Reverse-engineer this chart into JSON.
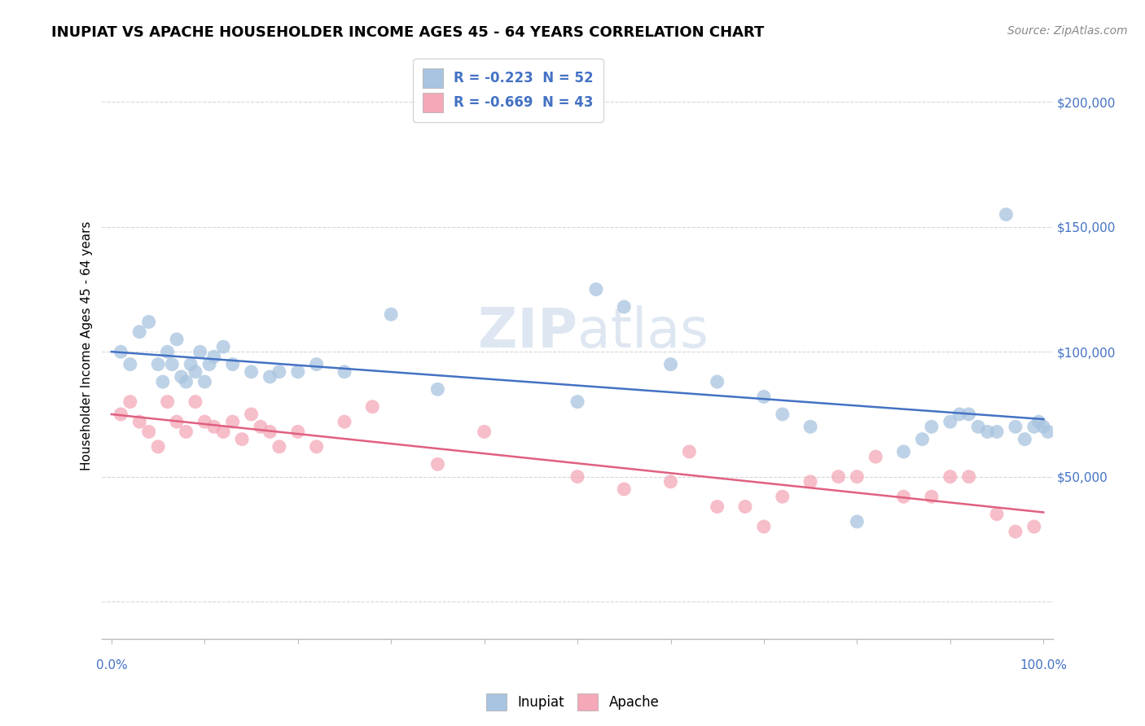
{
  "title": "INUPIAT VS APACHE HOUSEHOLDER INCOME AGES 45 - 64 YEARS CORRELATION CHART",
  "source": "Source: ZipAtlas.com",
  "ylabel": "Householder Income Ages 45 - 64 years",
  "legend_inupiat": "R = -0.223  N = 52",
  "legend_apache": "R = -0.669  N = 43",
  "inupiat_color": "#a8c4e0",
  "apache_color": "#f4a8b8",
  "inupiat_line_color": "#4472c4",
  "apache_line_color": "#e06080",
  "watermark_zip": "ZIP",
  "watermark_atlas": "atlas",
  "inupiat_x": [
    1,
    2,
    3,
    4,
    5,
    5.5,
    6,
    6.5,
    7,
    7.5,
    8,
    8.5,
    9,
    9.5,
    10,
    10.5,
    11,
    12,
    13,
    15,
    17,
    20,
    22,
    50,
    52,
    55,
    60,
    65,
    70,
    72,
    75,
    80,
    85,
    87,
    88,
    90,
    91,
    92,
    93,
    94,
    95,
    96,
    97,
    98,
    99,
    99.5,
    100,
    100.5,
    18,
    25,
    30,
    35
  ],
  "inupiat_y": [
    100000,
    95000,
    108000,
    112000,
    95000,
    88000,
    100000,
    95000,
    105000,
    90000,
    88000,
    95000,
    92000,
    100000,
    88000,
    95000,
    98000,
    102000,
    95000,
    92000,
    90000,
    92000,
    95000,
    80000,
    125000,
    118000,
    95000,
    88000,
    82000,
    75000,
    70000,
    32000,
    60000,
    65000,
    70000,
    72000,
    75000,
    75000,
    70000,
    68000,
    68000,
    155000,
    70000,
    65000,
    70000,
    72000,
    70000,
    68000,
    92000,
    92000,
    115000,
    85000
  ],
  "apache_x": [
    1,
    2,
    3,
    4,
    5,
    6,
    7,
    8,
    9,
    10,
    11,
    12,
    13,
    14,
    15,
    16,
    17,
    18,
    20,
    22,
    25,
    28,
    35,
    40,
    50,
    55,
    60,
    62,
    65,
    68,
    70,
    72,
    75,
    78,
    80,
    82,
    85,
    88,
    90,
    92,
    95,
    97,
    99
  ],
  "apache_y": [
    75000,
    80000,
    72000,
    68000,
    62000,
    80000,
    72000,
    68000,
    80000,
    72000,
    70000,
    68000,
    72000,
    65000,
    75000,
    70000,
    68000,
    62000,
    68000,
    62000,
    72000,
    78000,
    55000,
    68000,
    50000,
    45000,
    48000,
    60000,
    38000,
    38000,
    30000,
    42000,
    48000,
    50000,
    50000,
    58000,
    42000,
    42000,
    50000,
    50000,
    35000,
    28000,
    30000
  ],
  "ytick_vals": [
    0,
    50000,
    100000,
    150000,
    200000
  ],
  "ytick_labels": [
    "",
    "$50,000",
    "$100,000",
    "$150,000",
    "$200,000"
  ],
  "xlim": [
    -1,
    101
  ],
  "ylim": [
    -15000,
    220000
  ],
  "background_color": "#ffffff",
  "grid_color": "#cccccc",
  "title_fontsize": 13,
  "axis_label_fontsize": 11,
  "tick_fontsize": 11,
  "source_fontsize": 10
}
